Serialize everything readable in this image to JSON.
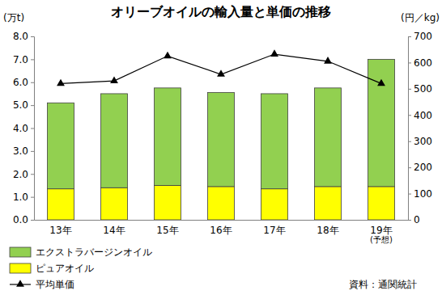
{
  "chart_data": {
    "type": "bar",
    "stacked": true,
    "title": "オリーブオイルの輸入量と単価の推移",
    "y_label": "(万t)",
    "y2_label": "(円／kg)",
    "source": "資料：通関統計",
    "categories": [
      "13年",
      "14年",
      "15年",
      "16年",
      "17年",
      "18年",
      "19年\n(予想)"
    ],
    "series": [
      {
        "name": "エクストラバージンオイル",
        "type": "bar",
        "color": "#92d050",
        "values": [
          3.75,
          4.1,
          4.25,
          4.1,
          4.15,
          4.3,
          5.55
        ]
      },
      {
        "name": "ピュアオイル",
        "type": "bar",
        "color": "#ffff00",
        "values": [
          1.35,
          1.4,
          1.5,
          1.45,
          1.35,
          1.45,
          1.45
        ]
      },
      {
        "name": "平均単価",
        "type": "line",
        "axis": "y2",
        "color": "#000000",
        "marker": "triangle",
        "values": [
          520,
          530,
          625,
          555,
          632,
          605,
          520
        ]
      }
    ],
    "ylim": [
      0,
      8
    ],
    "yticks": [
      {
        "value": 0,
        "label": "0.0"
      },
      {
        "value": 1,
        "label": "1.0"
      },
      {
        "value": 2,
        "label": "2.0"
      },
      {
        "value": 3,
        "label": "3.0"
      },
      {
        "value": 4,
        "label": "4.0"
      },
      {
        "value": 5,
        "label": "5.0"
      },
      {
        "value": 6,
        "label": "6.0"
      },
      {
        "value": 7,
        "label": "7.0"
      },
      {
        "value": 8,
        "label": "8.0"
      }
    ],
    "y2lim": [
      0,
      700
    ],
    "y2ticks": [
      0,
      100,
      200,
      300,
      400,
      500,
      600,
      700
    ],
    "grid": false,
    "legend": "bottom"
  }
}
